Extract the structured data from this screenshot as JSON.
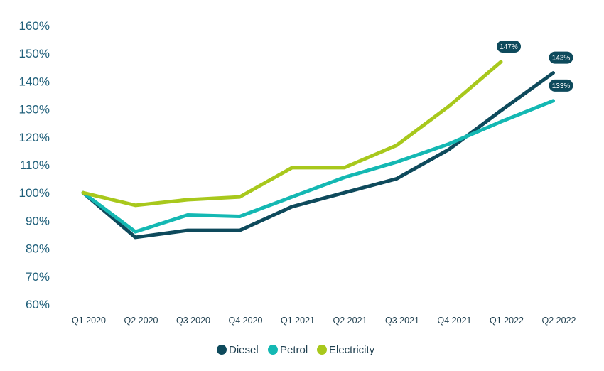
{
  "chart_data": {
    "type": "line",
    "title": "",
    "xlabel": "",
    "ylabel": "",
    "categories": [
      "Q1 2020",
      "Q2 2020",
      "Q3 2020",
      "Q4 2020",
      "Q1 2021",
      "Q2 2021",
      "Q3 2021",
      "Q4 2021",
      "Q1 2022",
      "Q2 2022"
    ],
    "y_ticks": [
      "60%",
      "70%",
      "80%",
      "90%",
      "100%",
      "110%",
      "120%",
      "130%",
      "140%",
      "150%",
      "160%"
    ],
    "ylim": [
      60,
      160
    ],
    "grid": false,
    "legend_position": "bottom-center",
    "series": [
      {
        "name": "Diesel",
        "color": "#0e4a5c",
        "values": [
          100,
          84,
          86.5,
          86.5,
          95,
          100,
          105,
          115.5,
          129.5,
          143
        ],
        "end_label": "143%"
      },
      {
        "name": "Petrol",
        "color": "#14b8b3",
        "values": [
          100,
          86,
          92,
          91.5,
          98.5,
          105.5,
          111,
          117.5,
          125.5,
          133
        ],
        "end_label": "133%"
      },
      {
        "name": "Electricity",
        "color": "#a8c81c",
        "values": [
          100,
          95.5,
          97.5,
          98.5,
          109,
          109,
          117,
          131,
          147,
          null
        ],
        "end_label": "147%"
      }
    ]
  }
}
